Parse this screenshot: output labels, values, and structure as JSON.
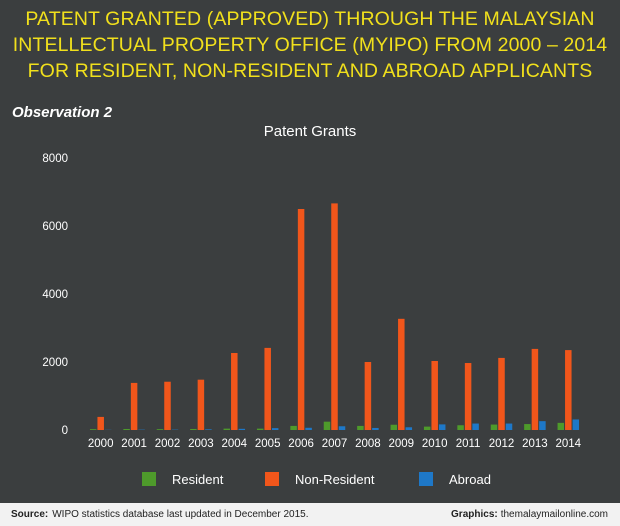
{
  "header": {
    "title_lines": [
      "PATENT GRANTED (APPROVED) THROUGH THE MALAYSIAN",
      "INTELLECTUAL PROPERTY OFFICE (MYIPO) FROM 2000 – 2014",
      "FOR RESIDENT, NON-RESIDENT AND ABROAD APPLICANTS"
    ],
    "subtitle": "Observation 2"
  },
  "footer": {
    "source_label": "Source:",
    "source_text": "WIPO statistics database last updated in December 2015.",
    "credit_label": "Graphics:",
    "credit_text": "themalaymailonline.com"
  },
  "chart_data": {
    "type": "bar",
    "title": "Patent Grants",
    "xlabel": "",
    "ylabel": "",
    "categories": [
      "2000",
      "2001",
      "2002",
      "2003",
      "2004",
      "2005",
      "2006",
      "2007",
      "2008",
      "2009",
      "2010",
      "2011",
      "2012",
      "2013",
      "2014"
    ],
    "series": [
      {
        "name": "Resident",
        "color": "#4e9a2b",
        "values": [
          25,
          30,
          25,
          30,
          40,
          40,
          120,
          245,
          120,
          155,
          100,
          140,
          160,
          175,
          210
        ]
      },
      {
        "name": "Non-Resident",
        "color": "#f1561b",
        "values": [
          385,
          1385,
          1420,
          1480,
          2265,
          2415,
          6500,
          6665,
          2000,
          3270,
          2030,
          1970,
          2120,
          2385,
          2350
        ]
      },
      {
        "name": "Abroad",
        "color": "#1e78c8",
        "values": [
          5,
          10,
          10,
          20,
          35,
          55,
          65,
          110,
          60,
          80,
          165,
          190,
          190,
          260,
          310
        ]
      }
    ],
    "ylim": [
      0,
      8000
    ],
    "yticks": [
      0,
      2000,
      4000,
      6000,
      8000
    ],
    "grid": false,
    "legend": "bottom"
  }
}
